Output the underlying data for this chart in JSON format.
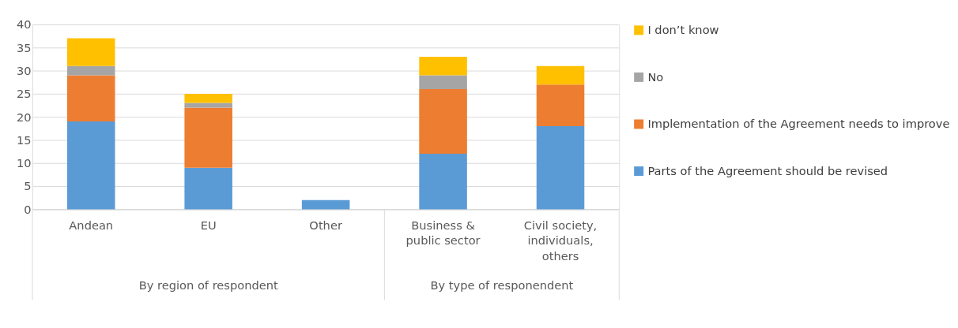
{
  "chart_data": {
    "type": "bar",
    "stacked": true,
    "categories": [
      "Andean",
      "EU",
      "Other",
      "Business & public sector",
      "Civil society, individuals, others"
    ],
    "series": [
      {
        "name": "Parts of the Agreement should be revised",
        "color": "#5b9bd5",
        "values": [
          19,
          9,
          2,
          12,
          18
        ]
      },
      {
        "name": "Implementation of the Agreement needs to improve",
        "color": "#ed7d31",
        "values": [
          10,
          13,
          0,
          14,
          9
        ]
      },
      {
        "name": "No",
        "color": "#a5a5a5",
        "values": [
          2,
          1,
          0,
          3,
          0
        ]
      },
      {
        "name": "I don’t know",
        "color": "#ffc000",
        "values": [
          6,
          2,
          0,
          4,
          4
        ]
      }
    ],
    "ylim": [
      0,
      40
    ],
    "yticks": [
      0,
      5,
      10,
      15,
      20,
      25,
      30,
      35,
      40
    ],
    "grid": "y",
    "legend": "right",
    "annotations": [
      "By region of respondent",
      "By type of responendent"
    ]
  }
}
